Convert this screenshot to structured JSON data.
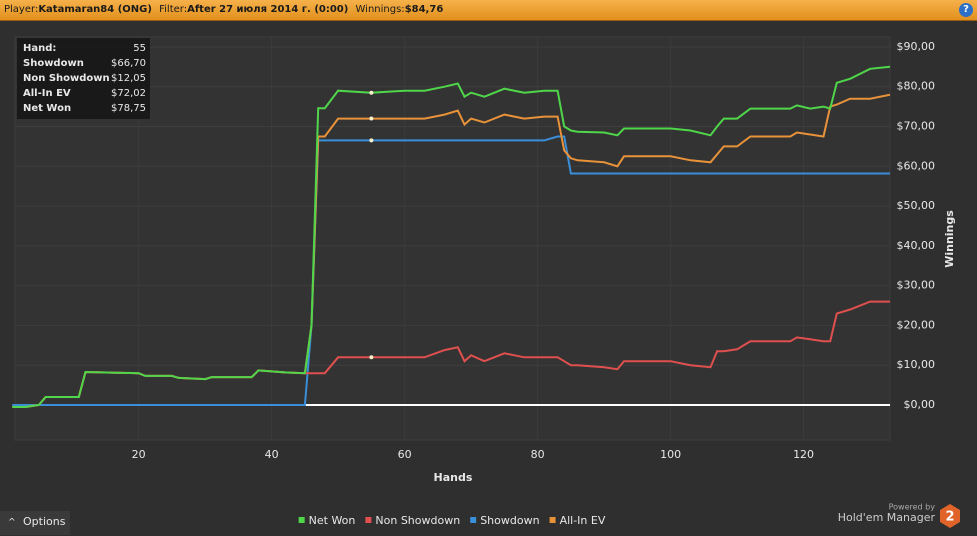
{
  "header": {
    "player_label": "Player:",
    "player": "Katamaran84 (ONG)",
    "filter_label": "Filter:",
    "filter": "After 27 июля 2014 г. (0:00)",
    "winnings_label": "Winnings:",
    "winnings": "$84,76"
  },
  "footer": {
    "options": "Options",
    "powered_by": "Powered by",
    "brand": "Hold'em Manager",
    "logo": "2"
  },
  "tooltip": {
    "rows": [
      [
        "Hand:",
        "55"
      ],
      [
        "Showdown",
        "$66,70"
      ],
      [
        "Non Showdown",
        "$12,05"
      ],
      [
        "All-In EV",
        "$72,02"
      ],
      [
        "Net Won",
        "$78,75"
      ]
    ],
    "hand_index": 20
  },
  "chart_data": {
    "type": "line",
    "x_label": "Hands",
    "y_label": "Winnings",
    "grid": true,
    "legend": "bottom",
    "xlim": [
      1.4,
      133
    ],
    "xticks": [
      20,
      40,
      60,
      80,
      100,
      120
    ],
    "ylim": [
      -8.8,
      92.5
    ],
    "yticks": [
      {
        "value": 0,
        "label": "$0,00"
      },
      {
        "value": 10,
        "label": "$10,00"
      },
      {
        "value": 20,
        "label": "$20,00"
      },
      {
        "value": 30,
        "label": "$30,00"
      },
      {
        "value": 40,
        "label": "$40,00"
      },
      {
        "value": 50,
        "label": "$50,00"
      },
      {
        "value": 60,
        "label": "$60,00"
      },
      {
        "value": 70,
        "label": "$70,00"
      },
      {
        "value": 80,
        "label": "$80,00"
      },
      {
        "value": 90,
        "label": "$90,00"
      }
    ],
    "x": [
      1,
      3,
      5,
      6,
      11,
      12,
      20,
      21,
      25,
      26,
      30,
      31,
      37,
      38,
      42,
      45,
      46,
      47,
      48,
      50,
      55,
      60,
      63,
      66,
      68,
      69,
      70,
      72,
      75,
      78,
      81,
      83,
      84,
      85,
      86,
      90,
      92,
      93,
      100,
      103,
      106,
      107,
      108,
      110,
      112,
      115,
      118,
      119,
      121,
      123,
      124,
      125,
      127,
      130,
      133
    ],
    "series": [
      {
        "name": "Net Won",
        "color": "#4fd64a",
        "values": [
          -0.5,
          -0.5,
          0,
          2,
          2,
          8.3,
          8,
          7.3,
          7.3,
          6.8,
          6.5,
          7,
          7,
          8.7,
          8.2,
          8,
          20,
          74.6,
          74.6,
          79,
          78.5,
          79,
          79,
          80,
          80.8,
          77.5,
          78.5,
          77.5,
          79.5,
          78.5,
          79,
          79,
          70,
          69,
          68.7,
          68.5,
          67.8,
          69.5,
          69.5,
          69,
          67.8,
          70,
          72,
          72,
          74.5,
          74.5,
          74.5,
          75.3,
          74.5,
          75,
          74.5,
          81,
          82,
          84.5,
          85
        ]
      },
      {
        "name": "Non Showdown",
        "color": "#e0504e",
        "values": [
          -0.5,
          -0.5,
          0,
          2,
          2,
          8.3,
          8,
          7.3,
          7.3,
          6.8,
          6.5,
          7,
          7,
          8.7,
          8.2,
          8,
          8,
          8,
          8,
          12,
          12,
          12,
          12,
          13.8,
          14.5,
          11,
          12.5,
          11,
          13,
          12,
          12,
          12,
          11,
          10,
          10,
          9.5,
          9,
          11,
          11,
          10,
          9.5,
          13.5,
          13.5,
          14,
          16,
          16,
          16,
          17,
          16.5,
          16,
          16,
          23,
          24,
          26,
          26
        ]
      },
      {
        "name": "Showdown",
        "color": "#3a8fd8",
        "values": [
          0,
          0,
          0,
          0,
          0,
          0,
          0,
          0,
          0,
          0,
          0,
          0,
          0,
          0,
          0,
          0,
          20,
          66.5,
          66.5,
          66.5,
          66.5,
          66.5,
          66.5,
          66.5,
          66.5,
          66.5,
          66.5,
          66.5,
          66.5,
          66.5,
          66.5,
          67.5,
          67.5,
          58.2,
          58.2,
          58.2,
          58.2,
          58.2,
          58.2,
          58.2,
          58.2,
          58.2,
          58.2,
          58.2,
          58.2,
          58.2,
          58.2,
          58.2,
          58.2,
          58.2,
          58.2,
          58.2,
          58.2,
          58.2,
          58.2
        ]
      },
      {
        "name": "All-In EV",
        "color": "#e8923a",
        "values": [
          -0.5,
          -0.5,
          0,
          2,
          2,
          8.3,
          8,
          7.3,
          7.3,
          6.8,
          6.5,
          7,
          7,
          8.7,
          8.2,
          8,
          20,
          67.5,
          67.5,
          72,
          72,
          72,
          72,
          73,
          74,
          70.5,
          72,
          71,
          73,
          72,
          72.5,
          72.5,
          64,
          62,
          61.5,
          61,
          60,
          62.5,
          62.5,
          61.5,
          61,
          63,
          65,
          65,
          67.5,
          67.5,
          67.5,
          68.5,
          68,
          67.5,
          75,
          75.5,
          77,
          77,
          78
        ]
      }
    ]
  }
}
